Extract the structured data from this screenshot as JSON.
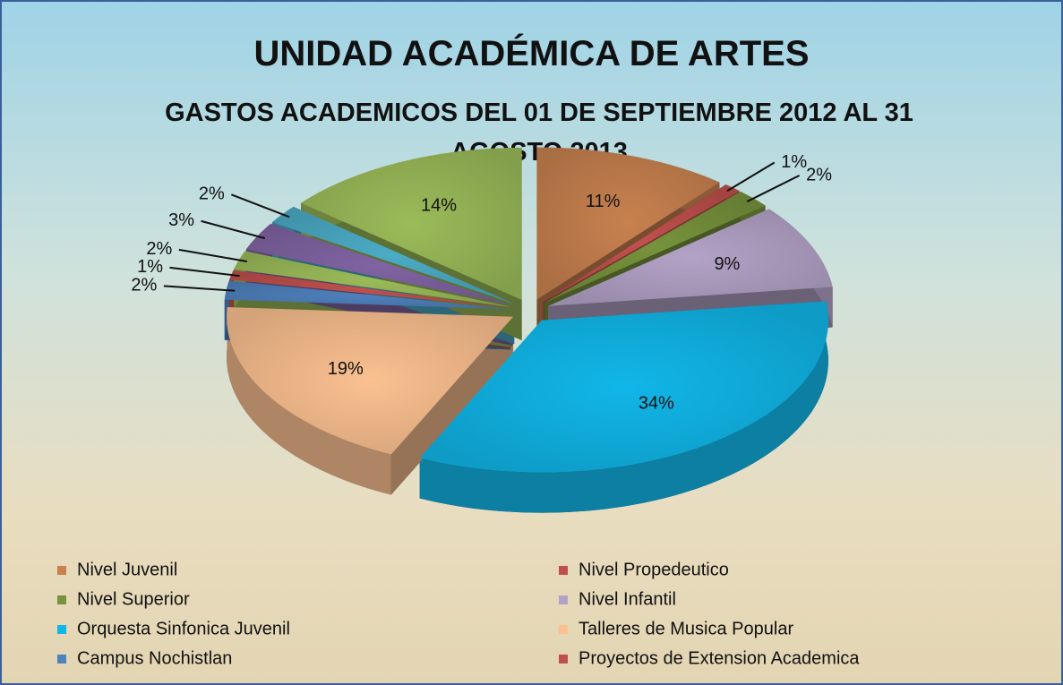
{
  "chart_data": {
    "type": "pie",
    "title": "UNIDAD ACADÉMICA DE ARTES",
    "subtitle": "GASTOS ACADEMICOS DEL 01 DE SEPTIEMBRE 2012 AL 31 AGOSTO  2013",
    "categories": [
      "Nivel Juvenil",
      "Nivel Propedeutico",
      "Nivel Superior",
      "Nivel Infantil",
      "Orquesta Sinfonica Juvenil",
      "Talleres de Musica Popular",
      "Campus Nochistlan",
      "Proyectos de Extension Academica",
      null,
      null,
      null,
      null
    ],
    "values": [
      11,
      1,
      2,
      9,
      34,
      19,
      2,
      1,
      2,
      3,
      2,
      14
    ],
    "value_labels": [
      "11%",
      "1%",
      "2%",
      "9%",
      "34%",
      "19%",
      "2%",
      "1%",
      "2%",
      "3%",
      "2%",
      "14%"
    ],
    "colors": [
      "#c8814f",
      "#c0504d",
      "#77933c",
      "#b3a2c7",
      "#11b6e8",
      "#fac090",
      "#4f81bd",
      "#c0504d",
      "#9bbb59",
      "#8064a2",
      "#4bacc6",
      "#9bbb59"
    ],
    "legend": "bottom"
  }
}
